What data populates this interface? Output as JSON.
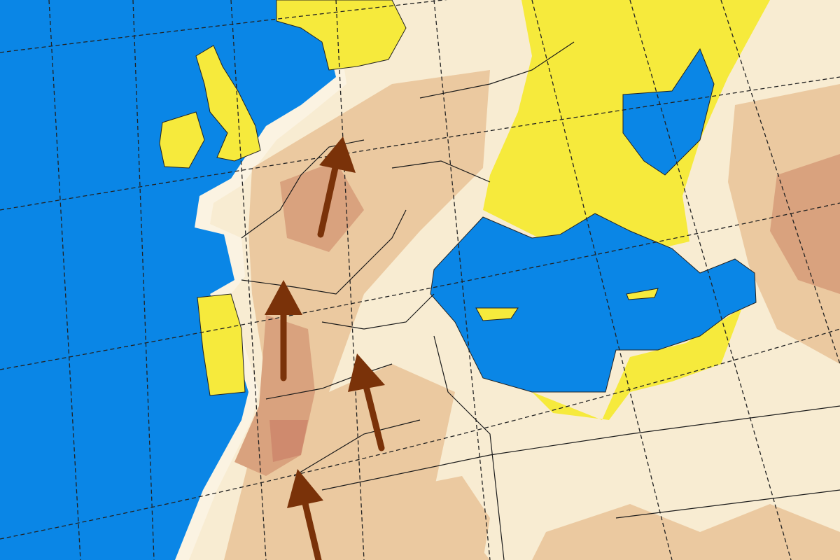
{
  "map": {
    "colors": {
      "ocean": "#0a86e6",
      "land_light": "#f8ecd2",
      "land_haze": "#fbf3e2",
      "dust_medium": "#ebc9a0",
      "dust_heavy": "#d9a27e",
      "dust_max": "#cf8a6e",
      "yellow_zone": "#f6ea3c",
      "arrow": "#7a3209",
      "border": "#1a1a1a"
    },
    "arrows": [
      {
        "icon": "arrow-north-northeast-icon",
        "direction": "NNE"
      },
      {
        "icon": "arrow-north-icon",
        "direction": "N"
      },
      {
        "icon": "arrow-north-northwest-icon",
        "direction": "NNW"
      },
      {
        "icon": "arrow-north-northwest-icon",
        "direction": "NNW"
      }
    ]
  }
}
